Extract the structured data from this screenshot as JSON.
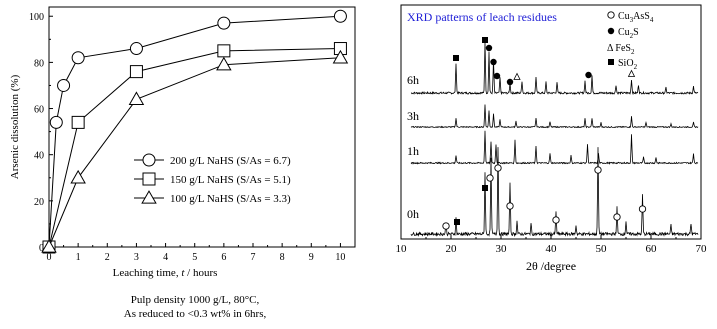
{
  "chart_data": [
    {
      "type": "line",
      "xlabel_prefix": "Leaching time, ",
      "xlabel_var": "t",
      "xlabel_suffix": " / hours",
      "ylabel": "Arsenic dissolution (%)",
      "xlim": [
        0,
        10.5
      ],
      "ylim": [
        0,
        104
      ],
      "xticks": [
        0,
        1,
        2,
        3,
        4,
        5,
        6,
        7,
        8,
        9,
        10
      ],
      "yticks": [
        0,
        20,
        40,
        60,
        80,
        100
      ],
      "legend_position": "right-center",
      "series": [
        {
          "name": "200 g/L NaHS (S/As = 6.7)",
          "marker": "circle",
          "x": [
            0,
            0.25,
            0.5,
            1,
            3,
            6,
            10
          ],
          "y": [
            0,
            54,
            70,
            82,
            86,
            97,
            100
          ]
        },
        {
          "name": "150 g/L NaHS (S/As = 5.1)",
          "marker": "square",
          "x": [
            0,
            1,
            3,
            6,
            10
          ],
          "y": [
            0,
            54,
            76,
            85,
            86
          ]
        },
        {
          "name": "100 g/L NaHS (S/As = 3.3)",
          "marker": "triangle",
          "x": [
            0,
            1,
            3,
            6,
            10
          ],
          "y": [
            0,
            30,
            64,
            79,
            82
          ]
        }
      ]
    },
    {
      "type": "line",
      "title": "XRD patterns of leach residues",
      "xlabel": "2θ /degree",
      "xlim": [
        10,
        70
      ],
      "xticks": [
        10,
        20,
        30,
        40,
        50,
        60,
        70
      ],
      "legend_position": "top-right",
      "legend": [
        {
          "symbol": "open-circle",
          "text": "Cu",
          "sub": "3",
          "text2": "AsS",
          "sub2": "4"
        },
        {
          "symbol": "filled-circle",
          "text": "Cu",
          "sub": "2",
          "text2": "S",
          "sub2": ""
        },
        {
          "symbol": "delta",
          "text": "Δ FeS",
          "sub": "2",
          "text2": "",
          "sub2": ""
        },
        {
          "symbol": "filled-square",
          "text": "SiO",
          "sub": "2",
          "text2": "",
          "sub2": ""
        }
      ],
      "traces": [
        {
          "label": "6h",
          "peaks": [
            [
              21,
              0.55
            ],
            [
              26.8,
              0.95
            ],
            [
              27.6,
              0.75
            ],
            [
              28.5,
              0.6
            ],
            [
              29.8,
              0.28
            ],
            [
              31.8,
              0.18
            ],
            [
              34.2,
              0.22
            ],
            [
              37.0,
              0.3
            ],
            [
              39.0,
              0.2
            ],
            [
              41.2,
              0.2
            ],
            [
              46.8,
              0.22
            ],
            [
              48.2,
              0.32
            ],
            [
              53.0,
              0.15
            ],
            [
              56.1,
              0.25
            ],
            [
              57.5,
              0.15
            ],
            [
              63.0,
              0.1
            ],
            [
              68.5,
              0.12
            ]
          ]
        },
        {
          "label": "3h",
          "peaks": [
            [
              21,
              0.3
            ],
            [
              26.8,
              0.75
            ],
            [
              27.6,
              0.55
            ],
            [
              28.5,
              0.45
            ],
            [
              29.8,
              0.25
            ],
            [
              33.0,
              0.2
            ],
            [
              37.0,
              0.3
            ],
            [
              39.8,
              0.18
            ],
            [
              46.8,
              0.28
            ],
            [
              48.2,
              0.3
            ],
            [
              50.0,
              0.15
            ],
            [
              56.1,
              0.35
            ],
            [
              59.0,
              0.15
            ],
            [
              64.0,
              0.1
            ],
            [
              68.5,
              0.15
            ]
          ]
        },
        {
          "label": "1h",
          "peaks": [
            [
              21,
              0.2
            ],
            [
              26.8,
              0.85
            ],
            [
              28.0,
              0.55
            ],
            [
              29.0,
              0.5
            ],
            [
              32.8,
              0.6
            ],
            [
              37.0,
              0.45
            ],
            [
              39.8,
              0.25
            ],
            [
              44.0,
              0.2
            ],
            [
              47.3,
              0.5
            ],
            [
              49.5,
              0.25
            ],
            [
              56.1,
              0.75
            ],
            [
              58.5,
              0.15
            ],
            [
              61.0,
              0.15
            ],
            [
              68.5,
              0.25
            ]
          ]
        },
        {
          "label": "0h",
          "peaks": [
            [
              19.0,
              0.12
            ],
            [
              21.0,
              0.18
            ],
            [
              26.8,
              0.7
            ],
            [
              28.0,
              0.85
            ],
            [
              29.4,
              1.0
            ],
            [
              31.8,
              0.6
            ],
            [
              33.2,
              0.15
            ],
            [
              36.0,
              0.12
            ],
            [
              41.0,
              0.25
            ],
            [
              45.0,
              0.1
            ],
            [
              49.4,
              1.0
            ],
            [
              53.2,
              0.3
            ],
            [
              55.0,
              0.15
            ],
            [
              58.3,
              0.45
            ],
            [
              64.0,
              0.1
            ],
            [
              68.0,
              0.12
            ]
          ]
        }
      ]
    }
  ],
  "caption": {
    "line1": "Pulp density 1000 g/L, 80°C,",
    "line2": "As reduced to <0.3 wt% in 6hrs,"
  }
}
